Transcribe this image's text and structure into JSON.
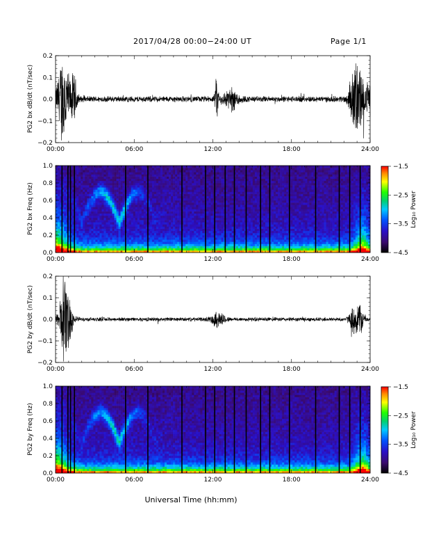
{
  "header": {
    "title": "2017/04/28  00:00−24:00 UT",
    "page": "Page 1/1"
  },
  "xlabel": "Universal Time (hh:mm)",
  "colorbar": {
    "label": "Log₁₀ Power",
    "tick_labels": [
      "−1.5",
      "−2.5",
      "−3.5",
      "−4.5"
    ]
  },
  "chart_data": [
    {
      "type": "line",
      "ylabel": "PG2 bx dB/dt (nT/sec)",
      "x_tick_labels": [
        "00:00",
        "06:00",
        "12:00",
        "18:00",
        "24:00"
      ],
      "y_tick_labels": [
        "0.2",
        "0.1",
        "0.0",
        "−0.1",
        "−0.2"
      ],
      "xlim_hours": [
        0,
        24
      ],
      "ylim": [
        -0.2,
        0.2
      ],
      "color": "#000000",
      "bursts": [
        {
          "t": 0.6,
          "width": 0.45,
          "amp": 0.19
        },
        {
          "t": 1.4,
          "width": 0.25,
          "amp": 0.09
        },
        {
          "t": 12.3,
          "width": 0.12,
          "amp": 0.09
        },
        {
          "t": 13.4,
          "width": 0.6,
          "amp": 0.04
        },
        {
          "t": 23.0,
          "width": 0.5,
          "amp": 0.16
        },
        {
          "t": 23.9,
          "width": 0.2,
          "amp": 0.06
        }
      ],
      "background_amp": 0.012
    },
    {
      "type": "heatmap",
      "ylabel": "PG2 bx Freq (Hz)",
      "x_tick_labels": [
        "00:00",
        "06:00",
        "12:00",
        "18:00",
        "24:00"
      ],
      "y_tick_labels": [
        "1.0",
        "0.8",
        "0.6",
        "0.4",
        "0.2",
        "0.0"
      ],
      "xlim_hours": [
        0,
        24
      ],
      "ylim": [
        0,
        1.0
      ],
      "colorbar_range": [
        -4.5,
        -1.5
      ],
      "gap_times_hours": [
        0.45,
        0.9,
        1.1,
        1.4,
        5.3,
        7.0,
        9.6,
        11.4,
        12.1,
        12.9,
        13.6,
        14.5,
        15.6,
        16.3,
        17.8,
        19.8,
        21.6,
        22.4,
        23.2
      ]
    },
    {
      "type": "line",
      "ylabel": "PG2 by dB/dt (nT/sec)",
      "x_tick_labels": [
        "00:00",
        "06:00",
        "12:00",
        "18:00",
        "24:00"
      ],
      "y_tick_labels": [
        "0.2",
        "0.1",
        "0.0",
        "−0.1",
        "−0.2"
      ],
      "xlim_hours": [
        0,
        24
      ],
      "ylim": [
        -0.2,
        0.2
      ],
      "color": "#000000",
      "bursts": [
        {
          "t": 0.75,
          "width": 0.45,
          "amp": 0.17
        },
        {
          "t": 12.4,
          "width": 0.5,
          "amp": 0.03
        },
        {
          "t": 23.0,
          "width": 0.45,
          "amp": 0.08
        }
      ],
      "background_amp": 0.008
    },
    {
      "type": "heatmap",
      "ylabel": "PG2 by Freq (Hz)",
      "x_tick_labels": [
        "00:00",
        "06:00",
        "12:00",
        "18:00",
        "24:00"
      ],
      "y_tick_labels": [
        "1.0",
        "0.8",
        "0.6",
        "0.4",
        "0.2",
        "0.0"
      ],
      "xlim_hours": [
        0,
        24
      ],
      "ylim": [
        0,
        1.0
      ],
      "colorbar_range": [
        -4.5,
        -1.5
      ],
      "gap_times_hours": [
        0.45,
        0.9,
        1.1,
        1.4,
        5.3,
        7.0,
        9.6,
        11.4,
        12.1,
        12.9,
        13.6,
        14.5,
        15.6,
        16.3,
        17.8,
        19.8,
        21.6,
        22.4,
        23.2
      ]
    }
  ]
}
